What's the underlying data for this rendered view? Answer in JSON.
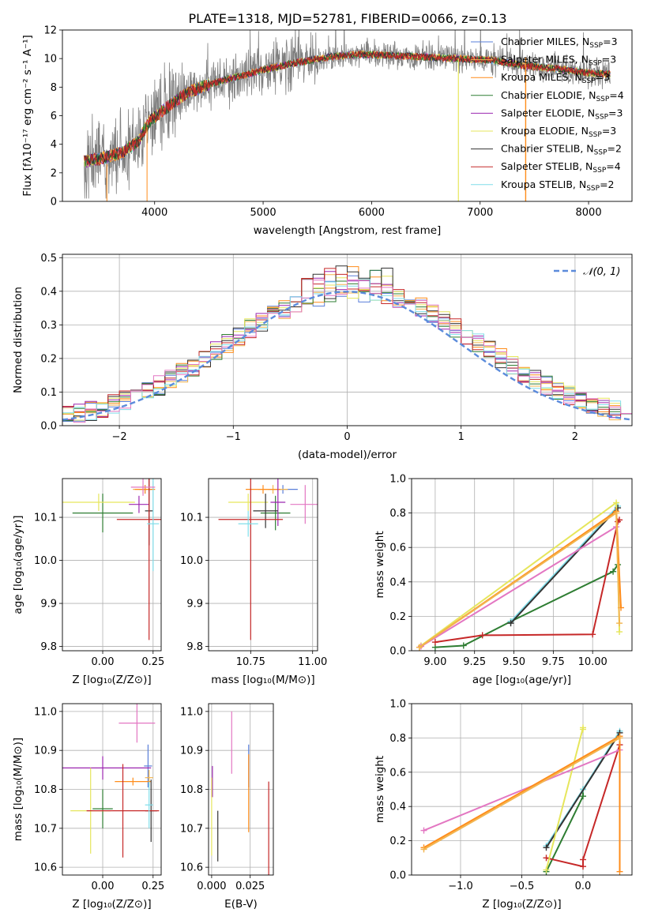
{
  "title": "PLATE=1318, MJD=52781, FIBERID=0066, z=0.13",
  "colors": {
    "Chabrier MILES": "#5a7fd9",
    "Salpeter MILES": "#f2b54f",
    "Kroupa MILES": "#ff8c1a",
    "Chabrier ELODIE": "#2e7d32",
    "Salpeter ELODIE": "#9c27b0",
    "Kroupa ELODIE": "#e6e65c",
    "Chabrier STELIB": "#333333",
    "Salpeter STELIB": "#c62828",
    "Kroupa STELIB": "#80deea",
    "pink": "#e377c2",
    "gray_data": "#7f7f7f",
    "normal_curve": "#5b8bdb"
  },
  "chart_data": [
    {
      "type": "line",
      "id": "spectrum",
      "title": "PLATE=1318, MJD=52781, FIBERID=0066, z=0.13",
      "xlabel": "wavelength [Angstrom, rest frame]",
      "ylabel": "Flux [fλ10⁻¹⁷ erg cm⁻² s⁻¹ A⁻¹]",
      "xlim": [
        3150,
        8400
      ],
      "ylim": [
        0,
        12
      ],
      "xticks": [
        4000,
        5000,
        6000,
        7000,
        8000
      ],
      "yticks": [
        0,
        2,
        4,
        6,
        8,
        10,
        12
      ],
      "legend": [
        "Chabrier MILES, N_SSP=3",
        "Salpeter MILES, N_SSP=3",
        "Kroupa MILES, N_SSP=3",
        "Chabrier ELODIE, N_SSP=4",
        "Salpeter ELODIE, N_SSP=3",
        "Kroupa ELODIE, N_SSP=3",
        "Chabrier STELIB, N_SSP=2",
        "Salpeter STELIB, N_SSP=4",
        "Kroupa STELIB, N_SSP=2"
      ],
      "legend_placement": "top-right",
      "continuum": {
        "x": [
          3350,
          3500,
          3700,
          3850,
          3950,
          4100,
          4300,
          4500,
          4800,
          5000,
          5300,
          5600,
          5900,
          6200,
          6500,
          6800,
          7100,
          7400,
          7700,
          8000,
          8200
        ],
        "y": [
          2.8,
          3.0,
          3.4,
          4.2,
          5.6,
          6.5,
          7.6,
          8.2,
          8.8,
          9.2,
          9.7,
          10.1,
          10.3,
          10.2,
          10.1,
          10.0,
          9.9,
          9.5,
          9.3,
          9.0,
          8.9
        ]
      }
    },
    {
      "type": "line",
      "id": "residuals",
      "xlabel": "(data-model)/error",
      "ylabel": "Normed distribution",
      "xlim": [
        -2.5,
        2.5
      ],
      "ylim": [
        0,
        0.51
      ],
      "xticks": [
        -2,
        -1,
        0,
        1,
        2
      ],
      "yticks": [
        0.0,
        0.1,
        0.2,
        0.3,
        0.4,
        0.5
      ],
      "legend": [
        "𝒩(0, 1)"
      ],
      "legend_placement": "top-right",
      "grid": true
    },
    {
      "type": "scatter",
      "id": "age_vs_Z",
      "xlabel": "Z [log₁₀(Z/Z⊙)]",
      "ylabel": "age  [log₁₀(age/yr)]",
      "xlim": [
        -0.2,
        0.29
      ],
      "ylim": [
        9.79,
        10.19
      ],
      "xticks": [
        0.0,
        0.25
      ],
      "yticks": [
        9.8,
        9.9,
        10.0,
        10.1
      ],
      "grid": true,
      "points": [
        {
          "model": "Chabrier MILES",
          "x": 0.21,
          "y": 10.165,
          "xerr": 0.03,
          "yerr": 0.01
        },
        {
          "model": "Salpeter MILES",
          "x": 0.2,
          "y": 10.165,
          "xerr": 0.05,
          "yerr": 0.01
        },
        {
          "model": "Kroupa MILES",
          "x": 0.21,
          "y": 10.165,
          "xerr": 0.05,
          "yerr": 0.01
        },
        {
          "model": "Chabrier ELODIE",
          "x": 0.0,
          "y": 10.11,
          "xerr": 0.15,
          "yerr": 0.045
        },
        {
          "model": "Salpeter ELODIE",
          "x": 0.18,
          "y": 10.13,
          "xerr": 0.05,
          "yerr": 0.02
        },
        {
          "model": "Kroupa ELODIE",
          "x": -0.02,
          "y": 10.135,
          "xerr": 0.18,
          "yerr": 0.02
        },
        {
          "model": "Chabrier STELIB",
          "x": 0.23,
          "y": 10.115,
          "xerr": 0.02,
          "yerr": 0.08
        },
        {
          "model": "Salpeter STELIB",
          "x": 0.23,
          "y": 10.095,
          "xerr": 0.16,
          "yerr": 0.28
        },
        {
          "model": "Kroupa STELIB",
          "x": 0.25,
          "y": 10.085,
          "xerr": 0.03,
          "yerr": 0.11
        },
        {
          "model": "pink",
          "x": 0.2,
          "y": 10.17,
          "xerr": 0.06,
          "yerr": 0.02
        }
      ]
    },
    {
      "type": "scatter",
      "id": "age_vs_mass",
      "xlabel": "mass [log₁₀(M/M⊙)]",
      "ylabel": "",
      "xlim": [
        10.58,
        11.02
      ],
      "ylim": [
        9.79,
        10.19
      ],
      "xticks": [
        10.75,
        11.0
      ],
      "yticks": [
        9.8,
        9.9,
        10.0,
        10.1
      ],
      "grid": true,
      "points": [
        {
          "model": "Chabrier MILES",
          "x": 10.88,
          "y": 10.165,
          "xerr": 0.06,
          "yerr": 0.01
        },
        {
          "model": "Salpeter MILES",
          "x": 10.84,
          "y": 10.165,
          "xerr": 0.06,
          "yerr": 0.01
        },
        {
          "model": "Kroupa MILES",
          "x": 10.8,
          "y": 10.165,
          "xerr": 0.07,
          "yerr": 0.01
        },
        {
          "model": "Chabrier ELODIE",
          "x": 10.85,
          "y": 10.11,
          "xerr": 0.06,
          "yerr": 0.04
        },
        {
          "model": "Salpeter ELODIE",
          "x": 10.86,
          "y": 10.135,
          "xerr": 0.03,
          "yerr": 0.055
        },
        {
          "model": "Kroupa ELODIE",
          "x": 10.74,
          "y": 10.135,
          "xerr": 0.08,
          "yerr": 0.02
        },
        {
          "model": "Chabrier STELIB",
          "x": 10.81,
          "y": 10.115,
          "xerr": 0.05,
          "yerr": 0.04
        },
        {
          "model": "Salpeter STELIB",
          "x": 10.75,
          "y": 10.095,
          "xerr": 0.13,
          "yerr": 0.28
        },
        {
          "model": "Kroupa STELIB",
          "x": 10.74,
          "y": 10.085,
          "xerr": 0.04,
          "yerr": 0.03
        },
        {
          "model": "pink",
          "x": 10.97,
          "y": 10.13,
          "xerr": 0.06,
          "yerr": 0.045
        }
      ]
    },
    {
      "type": "line",
      "id": "mass_weight_vs_age",
      "xlabel": "age  [log₁₀(age/yr)]",
      "ylabel": "mass weight",
      "xlim": [
        8.85,
        10.25
      ],
      "ylim": [
        0,
        1.0
      ],
      "xticks": [
        9.0,
        9.25,
        9.5,
        9.75,
        10.0
      ],
      "yticks": [
        0.0,
        0.2,
        0.4,
        0.6,
        0.8,
        1.0
      ],
      "grid": true,
      "series": [
        {
          "model": "Chabrier ELODIE",
          "x": [
            9.0,
            9.18,
            9.48,
            10.13,
            10.16
          ],
          "y": [
            0.02,
            0.03,
            0.17,
            0.46,
            0.5
          ]
        },
        {
          "model": "Salpeter STELIB",
          "x": [
            9.0,
            9.3,
            10.0,
            10.16,
            10.17
          ],
          "y": [
            0.05,
            0.09,
            0.095,
            0.75,
            0.76
          ]
        },
        {
          "model": "Kroupa STELIB",
          "x": [
            9.48,
            10.16
          ],
          "y": [
            0.17,
            0.84
          ]
        },
        {
          "model": "Chabrier STELIB",
          "x": [
            9.48,
            10.16
          ],
          "y": [
            0.16,
            0.83
          ]
        },
        {
          "model": "Kroupa ELODIE",
          "x": [
            8.91,
            10.15,
            10.17
          ],
          "y": [
            0.03,
            0.86,
            0.11
          ]
        },
        {
          "model": "pink",
          "x": [
            8.91,
            10.15
          ],
          "y": [
            0.025,
            0.72
          ]
        },
        {
          "model": "Kroupa MILES",
          "x": [
            8.9,
            10.15,
            10.18
          ],
          "y": [
            0.02,
            0.81,
            0.25
          ]
        },
        {
          "model": "Salpeter MILES",
          "x": [
            8.9,
            10.15,
            10.17
          ],
          "y": [
            0.02,
            0.8,
            0.16
          ]
        }
      ]
    },
    {
      "type": "scatter",
      "id": "mass_vs_Z",
      "xlabel": "Z [log₁₀(Z/Z⊙)]",
      "ylabel": "mass [log₁₀(M/M⊙)]",
      "xlim": [
        -0.2,
        0.29
      ],
      "ylim": [
        10.58,
        11.02
      ],
      "xticks": [
        0.0,
        0.25
      ],
      "yticks": [
        10.6,
        10.7,
        10.8,
        10.9,
        11.0
      ],
      "grid": true,
      "points": [
        {
          "model": "Chabrier MILES",
          "x": 0.225,
          "y": 10.86,
          "xerr": 0.02,
          "yerr": 0.055
        },
        {
          "model": "Salpeter MILES",
          "x": 0.23,
          "y": 10.83,
          "xerr": 0.02,
          "yerr": 0.02
        },
        {
          "model": "Kroupa MILES",
          "x": 0.15,
          "y": 10.82,
          "xerr": 0.09,
          "yerr": 0.01
        },
        {
          "model": "Chabrier ELODIE",
          "x": 0.0,
          "y": 10.75,
          "xerr": 0.05,
          "yerr": 0.05
        },
        {
          "model": "Salpeter ELODIE",
          "x": 0.0,
          "y": 10.855,
          "xerr": 0.24,
          "yerr": 0.03
        },
        {
          "model": "Kroupa ELODIE",
          "x": -0.06,
          "y": 10.745,
          "xerr": 0.1,
          "yerr": 0.11
        },
        {
          "model": "Chabrier STELIB",
          "x": 0.24,
          "y": 10.745,
          "xerr": 0.03,
          "yerr": 0.08
        },
        {
          "model": "Salpeter STELIB",
          "x": 0.1,
          "y": 10.745,
          "xerr": 0.18,
          "yerr": 0.12
        },
        {
          "model": "Kroupa STELIB",
          "x": 0.23,
          "y": 10.76,
          "xerr": 0.02,
          "yerr": 0.06
        },
        {
          "model": "pink",
          "x": 0.17,
          "y": 10.97,
          "xerr": 0.09,
          "yerr": 0.05
        }
      ]
    },
    {
      "type": "scatter",
      "id": "mass_vs_EBV",
      "xlabel": "E(B-V)",
      "ylabel": "",
      "xlim": [
        -0.002,
        0.04
      ],
      "ylim": [
        10.58,
        11.02
      ],
      "xticks": [
        0.0,
        0.025
      ],
      "yticks": [
        10.6,
        10.7,
        10.8,
        10.9,
        11.0
      ],
      "grid": true,
      "points": [
        {
          "model": "Chabrier MILES",
          "x": 0.024,
          "y": 10.86,
          "yerr": 0.055
        },
        {
          "model": "Kroupa MILES",
          "x": 0.024,
          "y": 10.79,
          "yerr": 0.1
        },
        {
          "model": "Salpeter ELODIE",
          "x": 0.0005,
          "y": 10.82,
          "yerr": 0.04
        },
        {
          "model": "Kroupa ELODIE",
          "x": 0.0,
          "y": 10.73,
          "yerr": 0.1
        },
        {
          "model": "Chabrier STELIB",
          "x": 0.004,
          "y": 10.68,
          "yerr": 0.065
        },
        {
          "model": "Salpeter STELIB",
          "x": 0.037,
          "y": 10.7,
          "yerr": 0.12
        },
        {
          "model": "pink",
          "x": 0.013,
          "y": 10.92,
          "yerr": 0.08
        }
      ]
    },
    {
      "type": "line",
      "id": "mass_weight_vs_Z",
      "xlabel": "Z [log₁₀(Z/Z⊙)]",
      "ylabel": "mass weight",
      "xlim": [
        -1.4,
        0.4
      ],
      "ylim": [
        0,
        1.0
      ],
      "xticks": [
        -1.0,
        -0.5,
        0.0
      ],
      "yticks": [
        0.0,
        0.2,
        0.4,
        0.6,
        0.8,
        1.0
      ],
      "grid": true,
      "series": [
        {
          "model": "Chabrier ELODIE",
          "x": [
            -0.3,
            0.0,
            0.0
          ],
          "y": [
            0.02,
            0.46,
            0.5
          ]
        },
        {
          "model": "Salpeter STELIB",
          "x": [
            -0.3,
            0.0,
            0.0,
            0.3
          ],
          "y": [
            0.1,
            0.05,
            0.09,
            0.76
          ]
        },
        {
          "model": "Kroupa STELIB",
          "x": [
            -0.3,
            0.0,
            0.3
          ],
          "y": [
            0.17,
            0.5,
            0.84
          ]
        },
        {
          "model": "Chabrier STELIB",
          "x": [
            -0.3,
            0.3
          ],
          "y": [
            0.16,
            0.83
          ]
        },
        {
          "model": "Kroupa ELODIE",
          "x": [
            -0.3,
            0.0,
            0.0
          ],
          "y": [
            0.03,
            0.86,
            0.85
          ]
        },
        {
          "model": "pink",
          "x": [
            -1.3,
            0.3
          ],
          "y": [
            0.26,
            0.73
          ]
        },
        {
          "model": "Kroupa MILES",
          "x": [
            -1.3,
            0.3,
            0.3
          ],
          "y": [
            0.16,
            0.81,
            0.02
          ]
        },
        {
          "model": "Salpeter MILES",
          "x": [
            -1.3,
            0.3
          ],
          "y": [
            0.15,
            0.8
          ]
        }
      ]
    }
  ]
}
